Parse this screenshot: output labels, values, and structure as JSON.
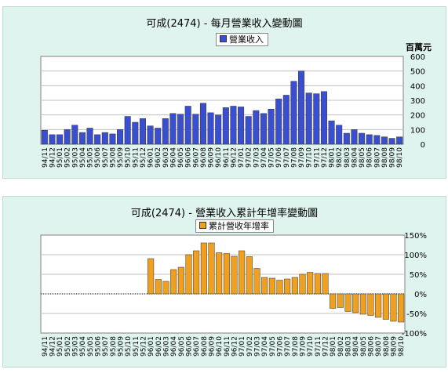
{
  "colors": {
    "panel_bg": "#dff4ee",
    "bar1": "#3a4fd0",
    "bar2": "#f0a020"
  },
  "chart_data": [
    {
      "type": "bar",
      "title": "可成(2474) - 每月營業收入變動圖",
      "legend": "營業收入",
      "unit": "百萬元",
      "ylim": [
        0,
        600
      ],
      "yticks": [
        "0",
        "100",
        "200",
        "300",
        "400",
        "500",
        "600"
      ],
      "categories": [
        "94/11",
        "94/12",
        "95/01",
        "95/02",
        "95/03",
        "95/04",
        "95/05",
        "95/06",
        "95/07",
        "95/08",
        "95/09",
        "95/10",
        "95/11",
        "95/12",
        "96/01",
        "96/02",
        "96/03",
        "96/04",
        "96/05",
        "96/06",
        "96/07",
        "96/08",
        "96/09",
        "96/10",
        "96/11",
        "96/12",
        "97/01",
        "97/02",
        "97/03",
        "97/04",
        "97/05",
        "97/06",
        "97/07",
        "97/08",
        "97/09",
        "97/10",
        "97/11",
        "97/12",
        "98/01",
        "98/02",
        "98/03",
        "98/04",
        "98/05",
        "98/06",
        "98/07",
        "98/08",
        "98/09",
        "98/10"
      ],
      "values": [
        95,
        65,
        65,
        100,
        130,
        80,
        110,
        65,
        80,
        70,
        100,
        190,
        150,
        175,
        125,
        110,
        175,
        210,
        205,
        260,
        205,
        280,
        215,
        200,
        250,
        260,
        255,
        190,
        230,
        210,
        240,
        310,
        335,
        430,
        500,
        350,
        345,
        360,
        160,
        130,
        75,
        100,
        75,
        65,
        60,
        50,
        40,
        50
      ]
    },
    {
      "type": "bar",
      "title": "可成(2474) -  營業收入累計年增率變動圖",
      "legend": "累計營收年增率",
      "ylim": [
        -100,
        150
      ],
      "yticks": [
        "-100%",
        "-50%",
        "0%",
        "50%",
        "100%",
        "150%"
      ],
      "categories": [
        "94/11",
        "94/12",
        "95/01",
        "95/02",
        "95/03",
        "95/04",
        "95/05",
        "95/06",
        "95/07",
        "95/08",
        "95/09",
        "95/10",
        "95/11",
        "95/12",
        "96/01",
        "96/02",
        "96/03",
        "96/04",
        "96/05",
        "96/06",
        "96/07",
        "96/08",
        "96/09",
        "96/10",
        "96/11",
        "96/12",
        "97/01",
        "97/02",
        "97/03",
        "97/04",
        "97/05",
        "97/06",
        "97/07",
        "97/08",
        "97/09",
        "97/10",
        "97/11",
        "97/12",
        "98/01",
        "98/02",
        "98/03",
        "98/04",
        "98/05",
        "98/06",
        "98/07",
        "98/08",
        "98/09",
        "98/10"
      ],
      "values": [
        0,
        0,
        0,
        0,
        0,
        0,
        0,
        0,
        0,
        0,
        0,
        0,
        0,
        0,
        90,
        37,
        32,
        62,
        68,
        100,
        110,
        130,
        130,
        105,
        103,
        96,
        110,
        95,
        65,
        42,
        40,
        35,
        38,
        42,
        50,
        55,
        52,
        52,
        -37,
        -35,
        -45,
        -48,
        -52,
        -55,
        -60,
        -65,
        -70,
        -72
      ]
    }
  ]
}
